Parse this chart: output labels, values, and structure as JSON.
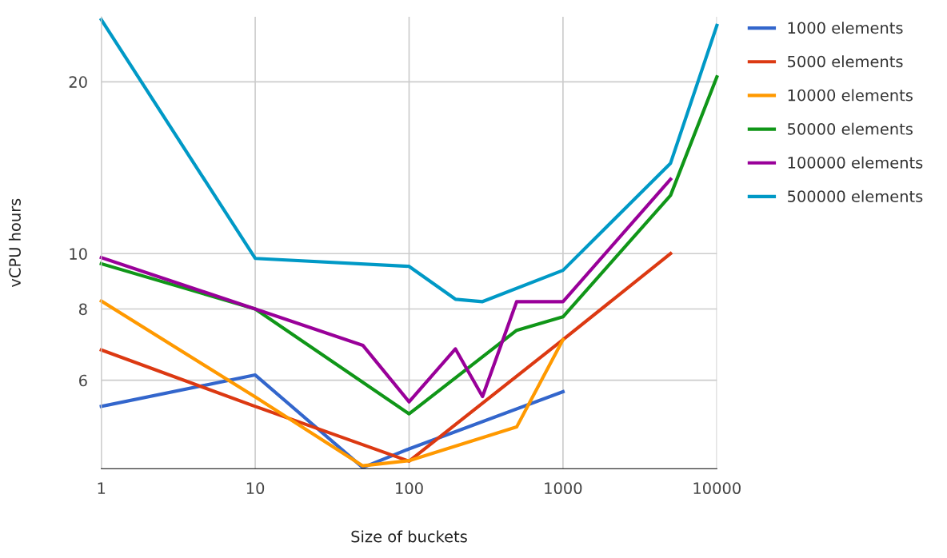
{
  "chart_data": {
    "type": "line",
    "xlabel": "Size of buckets",
    "ylabel": "vCPU hours",
    "log": "xy",
    "grid": true,
    "legend": "right",
    "marker": "none",
    "line_style": "solid",
    "xlim": [
      1,
      10000
    ],
    "xticks": [
      1,
      10,
      100,
      1000,
      10000
    ],
    "ylim": [
      4.2,
      26
    ],
    "yticks": [
      6,
      8,
      10,
      20
    ],
    "series": [
      {
        "name": "1000 elements",
        "color": "#3366cc",
        "x": [
          1,
          10,
          50,
          100,
          1000
        ],
        "values": [
          5.4,
          6.13,
          4.22,
          4.55,
          5.73
        ]
      },
      {
        "name": "5000 elements",
        "color": "#dc3912",
        "x": [
          1,
          10,
          100,
          1000,
          5000
        ],
        "values": [
          6.78,
          5.4,
          4.33,
          7.07,
          10.0
        ]
      },
      {
        "name": "10000 elements",
        "color": "#ff9900",
        "x": [
          1,
          10,
          50,
          100,
          500,
          1000
        ],
        "values": [
          8.26,
          5.61,
          4.25,
          4.34,
          4.97,
          7.07
        ]
      },
      {
        "name": "50000 elements",
        "color": "#109618",
        "x": [
          1,
          10,
          100,
          500,
          1000,
          5000,
          10000
        ],
        "values": [
          9.6,
          8.0,
          5.24,
          7.34,
          7.75,
          12.65,
          20.4
        ]
      },
      {
        "name": "100000 elements",
        "color": "#990099",
        "x": [
          1,
          10,
          50,
          100,
          200,
          300,
          500,
          1000,
          5000
        ],
        "values": [
          9.84,
          8.0,
          6.91,
          5.5,
          6.81,
          5.62,
          8.24,
          8.24,
          13.5
        ]
      },
      {
        "name": "500000 elements",
        "color": "#0099c6",
        "x": [
          1,
          10,
          100,
          200,
          300,
          1000,
          5000,
          10000
        ],
        "values": [
          25.7,
          9.81,
          9.5,
          8.32,
          8.24,
          9.35,
          14.4,
          25.1
        ]
      }
    ]
  }
}
